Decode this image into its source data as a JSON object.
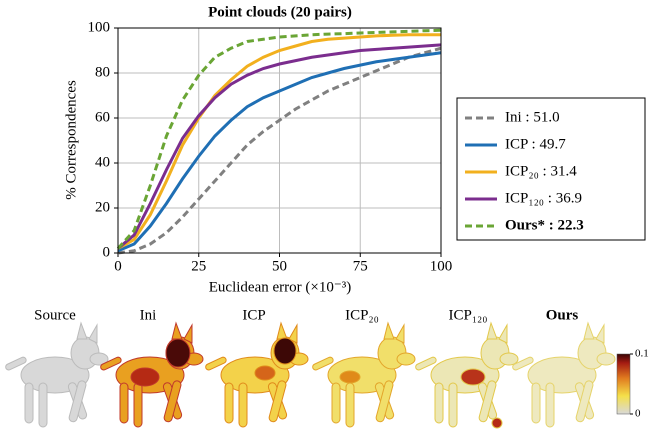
{
  "chart_data": {
    "type": "line",
    "title": "Point clouds (20 pairs)",
    "x_label": "Euclidean error (×10⁻³)",
    "y_label": "% Correspondences",
    "x": [
      0,
      5,
      10,
      15,
      20,
      25,
      30,
      35,
      40,
      45,
      50,
      55,
      60,
      65,
      70,
      75,
      80,
      85,
      90,
      95,
      100
    ],
    "xlim": [
      0,
      100
    ],
    "xticks": [
      0,
      25,
      50,
      75,
      100
    ],
    "ylim": [
      0,
      100
    ],
    "yticks": [
      0,
      20,
      40,
      60,
      80,
      100
    ],
    "grid": true,
    "series": [
      {
        "name": "Ini : 51.0",
        "color": "#808080",
        "dash": true,
        "bold": false,
        "values": [
          0,
          1,
          4,
          9,
          16,
          24,
          32,
          40,
          48,
          54,
          59,
          64,
          68,
          72,
          75,
          78,
          81,
          84,
          87,
          89,
          91
        ]
      },
      {
        "name": "ICP : 49.7",
        "color": "#1f6fb4",
        "dash": false,
        "bold": false,
        "values": [
          1,
          4,
          12,
          22,
          33,
          43,
          52,
          59,
          65,
          69,
          72,
          75,
          78,
          80,
          82,
          83.5,
          85,
          86,
          87,
          88,
          89
        ]
      },
      {
        "name": "ICP₂₀ : 31.4",
        "color": "#f2b01e",
        "dash": false,
        "bold": false,
        "values": [
          2,
          6,
          17,
          32,
          48,
          60,
          70,
          77,
          83,
          87,
          90,
          92,
          94,
          95,
          95.5,
          96,
          96.5,
          96.8,
          97,
          97,
          97
        ]
      },
      {
        "name": "ICP₁₂₀ : 36.9",
        "color": "#7b2d8e",
        "dash": false,
        "bold": false,
        "values": [
          2,
          8,
          22,
          37,
          51,
          61,
          69,
          75,
          79,
          82,
          84,
          85.5,
          87,
          88,
          89,
          90,
          90.5,
          91,
          91.5,
          92,
          92.5
        ]
      },
      {
        "name": "Ours* : 22.3",
        "color": "#6aa535",
        "dash": true,
        "bold": true,
        "values": [
          2,
          10,
          30,
          52,
          68,
          79,
          87,
          91,
          94,
          95,
          96,
          96.5,
          97,
          97.3,
          97.5,
          97.8,
          98,
          98.3,
          98.5,
          98.8,
          99
        ]
      }
    ]
  },
  "panels": {
    "labels": [
      "Source",
      "Ini",
      "ICP",
      "ICP₂₀",
      "ICP₁₂₀",
      "Ours"
    ]
  },
  "colorbar": {
    "ticks": [
      0,
      0.1
    ]
  }
}
